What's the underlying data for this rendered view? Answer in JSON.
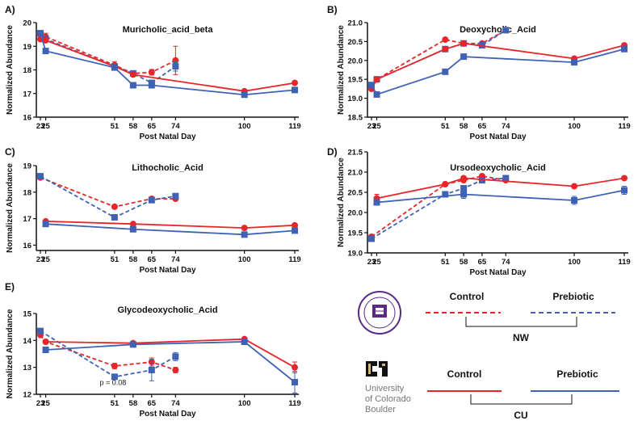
{
  "figure": {
    "legend": {
      "control_label": "Control",
      "prebiotic_label": "Prebiotic",
      "nw_label": "NW",
      "cu_label": "CU",
      "cu_logo_lines": [
        "University",
        "of Colorado",
        "Boulder"
      ],
      "nw_seal_text": "NORTHWESTERN UNIVERSITY 1851",
      "colors": {
        "control": "#e8262a",
        "prebiotic": "#3f62b5"
      }
    }
  },
  "chart_data": [
    {
      "panel": "A)",
      "type": "line",
      "title": "Muricholic_acid_beta",
      "xlabel": "Post Natal Day",
      "ylabel": "Normalized Abundance",
      "x_ticks": [
        23,
        25,
        51,
        58,
        65,
        74,
        100,
        119
      ],
      "ylim": [
        16,
        20
      ],
      "y_ticks": [
        16,
        17,
        18,
        19,
        20
      ],
      "series": [
        {
          "name": "NW Control",
          "style": "dashed",
          "color": "red",
          "x": [
            23,
            25,
            51,
            58,
            65,
            74
          ],
          "y": [
            19.3,
            19.4,
            18.2,
            17.85,
            17.9,
            18.4
          ],
          "err": [
            0,
            0.15,
            0.15,
            0.1,
            0.12,
            0.6
          ]
        },
        {
          "name": "NW Prebiotic",
          "style": "dashed",
          "color": "blue",
          "x": [
            23,
            25,
            51,
            58,
            65,
            74
          ],
          "y": [
            19.55,
            19.3,
            18.15,
            17.85,
            17.45,
            18.15
          ],
          "err": [
            0,
            0.1,
            0.1,
            0.08,
            0.08,
            0.2
          ]
        },
        {
          "name": "CU Control",
          "style": "solid",
          "color": "red",
          "x": [
            23,
            25,
            51,
            58,
            100,
            119
          ],
          "y": [
            19.3,
            19.25,
            18.15,
            17.8,
            17.1,
            17.45
          ],
          "err": [
            0,
            0,
            0,
            0,
            0,
            0
          ]
        },
        {
          "name": "CU Prebiotic",
          "style": "solid",
          "color": "blue",
          "x": [
            23,
            25,
            51,
            58,
            65,
            100,
            119
          ],
          "y": [
            19.55,
            18.8,
            18.1,
            17.35,
            17.35,
            16.95,
            17.15
          ],
          "err": [
            0,
            0,
            0,
            0,
            0,
            0,
            0
          ]
        }
      ]
    },
    {
      "panel": "B)",
      "type": "line",
      "title": "Deoxycholic_Acid",
      "xlabel": "Post Natal Day",
      "ylabel": "Normalized Abundance",
      "x_ticks": [
        23,
        25,
        51,
        58,
        65,
        74,
        100,
        119
      ],
      "ylim": [
        18.5,
        21.0
      ],
      "y_ticks": [
        18.5,
        19.0,
        19.5,
        20.0,
        20.5,
        21.0
      ],
      "series": [
        {
          "name": "NW Control",
          "style": "dashed",
          "color": "red",
          "x": [
            23,
            25,
            51,
            58,
            65,
            74
          ],
          "y": [
            19.25,
            19.5,
            20.55,
            20.45,
            20.45,
            20.8
          ],
          "err": [
            0,
            0,
            0,
            0,
            0,
            0
          ]
        },
        {
          "name": "NW Prebiotic",
          "style": "dashed",
          "color": "blue",
          "x": [
            23,
            25,
            51,
            58,
            65,
            74
          ],
          "y": [
            19.3,
            19.5,
            20.3,
            20.45,
            20.4,
            20.8
          ],
          "err": [
            0,
            0,
            0,
            0,
            0,
            0
          ]
        },
        {
          "name": "CU Control",
          "style": "solid",
          "color": "red",
          "x": [
            23,
            25,
            51,
            58,
            100,
            119
          ],
          "y": [
            19.25,
            19.5,
            20.3,
            20.45,
            20.05,
            20.4
          ],
          "err": [
            0,
            0,
            0,
            0,
            0,
            0
          ]
        },
        {
          "name": "CU Prebiotic",
          "style": "solid",
          "color": "blue",
          "x": [
            23,
            25,
            51,
            58,
            100,
            119
          ],
          "y": [
            19.35,
            19.1,
            19.7,
            20.1,
            19.95,
            20.3
          ],
          "err": [
            0,
            0.05,
            0,
            0,
            0,
            0
          ]
        }
      ]
    },
    {
      "panel": "C)",
      "type": "line",
      "title": "Lithocholic_Acid",
      "xlabel": "Post Natal Day",
      "ylabel": "Normalized Abundance",
      "x_ticks": [
        23,
        25,
        51,
        58,
        65,
        74,
        100,
        119
      ],
      "ylim": [
        15.8,
        19.0
      ],
      "y_ticks": [
        16,
        17,
        18,
        19
      ],
      "series": [
        {
          "name": "NW Control",
          "style": "dashed",
          "color": "red",
          "x": [
            23,
            51,
            65,
            74
          ],
          "y": [
            18.55,
            17.45,
            17.75,
            17.75
          ],
          "err": [
            0,
            0,
            0,
            0
          ]
        },
        {
          "name": "NW Prebiotic",
          "style": "dashed",
          "color": "blue",
          "x": [
            23,
            51,
            65,
            74
          ],
          "y": [
            18.6,
            17.05,
            17.7,
            17.85
          ],
          "err": [
            0,
            0,
            0,
            0
          ]
        },
        {
          "name": "CU Control",
          "style": "solid",
          "color": "red",
          "x": [
            25,
            58,
            100,
            119
          ],
          "y": [
            16.9,
            16.8,
            16.65,
            16.75
          ],
          "err": [
            0,
            0,
            0,
            0
          ]
        },
        {
          "name": "CU Prebiotic",
          "style": "solid",
          "color": "blue",
          "x": [
            25,
            58,
            100,
            119
          ],
          "y": [
            16.8,
            16.6,
            16.4,
            16.55
          ],
          "err": [
            0,
            0,
            0,
            0
          ]
        }
      ]
    },
    {
      "panel": "D)",
      "type": "line",
      "title": "Ursodeoxycholic_Acid",
      "xlabel": "Post Natal Day",
      "ylabel": "Normalized Abundance",
      "x_ticks": [
        23,
        25,
        51,
        58,
        65,
        74,
        100,
        119
      ],
      "ylim": [
        19.0,
        21.5
      ],
      "y_ticks": [
        19.0,
        19.5,
        20.0,
        20.5,
        21.0,
        21.5
      ],
      "series": [
        {
          "name": "NW Control",
          "style": "dashed",
          "color": "red",
          "x": [
            23,
            51,
            58,
            65,
            74
          ],
          "y": [
            19.4,
            20.7,
            20.8,
            20.9,
            20.8
          ],
          "err": [
            0,
            0,
            0,
            0,
            0
          ]
        },
        {
          "name": "NW Prebiotic",
          "style": "dashed",
          "color": "blue",
          "x": [
            23,
            51,
            58,
            65,
            74
          ],
          "y": [
            19.35,
            20.45,
            20.6,
            20.8,
            20.85
          ],
          "err": [
            0,
            0,
            0,
            0,
            0
          ]
        },
        {
          "name": "CU Control",
          "style": "solid",
          "color": "red",
          "x": [
            25,
            51,
            58,
            100,
            119
          ],
          "y": [
            20.35,
            20.7,
            20.85,
            20.65,
            20.85
          ],
          "err": [
            0.1,
            0,
            0,
            0,
            0
          ]
        },
        {
          "name": "CU Prebiotic",
          "style": "solid",
          "color": "blue",
          "x": [
            25,
            58,
            100,
            119
          ],
          "y": [
            20.25,
            20.45,
            20.3,
            20.55
          ],
          "err": [
            0,
            0.1,
            0.1,
            0.1
          ]
        }
      ]
    },
    {
      "panel": "E)",
      "type": "line",
      "title": "Glycodeoxycholic_Acid",
      "xlabel": "Post Natal Day",
      "ylabel": "Normalized Abundance",
      "x_ticks": [
        23,
        25,
        51,
        58,
        65,
        74,
        100,
        119
      ],
      "ylim": [
        12,
        15
      ],
      "y_ticks": [
        12,
        13,
        14,
        15
      ],
      "annotation": "p = 0.08",
      "series": [
        {
          "name": "NW Control",
          "style": "dashed",
          "color": "red",
          "x": [
            23,
            25,
            51,
            65,
            74
          ],
          "y": [
            14.2,
            13.95,
            13.05,
            13.2,
            12.9
          ],
          "err": [
            0,
            0,
            0.1,
            0.15,
            0.1
          ]
        },
        {
          "name": "NW Prebiotic",
          "style": "dashed",
          "color": "blue",
          "x": [
            23,
            51,
            65,
            74
          ],
          "y": [
            14.35,
            12.65,
            12.9,
            13.4
          ],
          "err": [
            0,
            0.1,
            0.4,
            0.15
          ]
        },
        {
          "name": "CU Control",
          "style": "solid",
          "color": "red",
          "x": [
            25,
            58,
            100,
            119
          ],
          "y": [
            13.95,
            13.9,
            14.05,
            13.0
          ],
          "err": [
            0,
            0.05,
            0,
            0.2
          ]
        },
        {
          "name": "CU Prebiotic",
          "style": "solid",
          "color": "blue",
          "x": [
            25,
            58,
            100,
            119
          ],
          "y": [
            13.65,
            13.85,
            13.95,
            12.45
          ],
          "err": [
            0,
            0,
            0,
            0.4
          ]
        }
      ]
    }
  ]
}
